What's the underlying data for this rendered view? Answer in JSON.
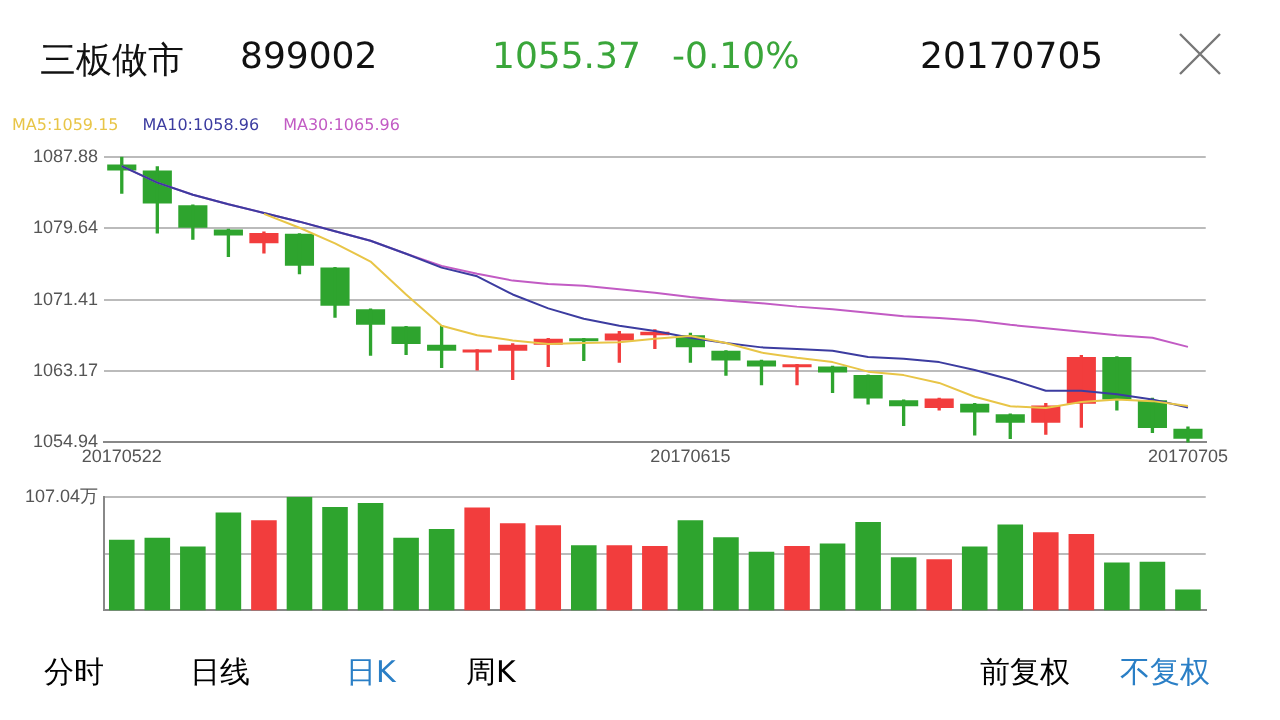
{
  "chart_data": [
    {
      "type": "candlestick",
      "title": "三板做市",
      "annotations": [
        "899002",
        "1055.37",
        "-0.10%",
        "20170705"
      ],
      "categories": [
        "20170522",
        null,
        null,
        null,
        null,
        null,
        null,
        null,
        null,
        null,
        null,
        null,
        null,
        null,
        null,
        null,
        "20170615",
        null,
        null,
        null,
        null,
        null,
        null,
        null,
        null,
        null,
        null,
        null,
        null,
        null,
        "20170705"
      ],
      "ohlc": [
        [
          1087.0,
          1087.88,
          1083.7,
          1086.3
        ],
        [
          1086.3,
          1086.7,
          1079.1,
          1082.5
        ],
        [
          1082.3,
          1082.3,
          1078.4,
          1079.7
        ],
        [
          1079.5,
          1079.5,
          1076.4,
          1078.8
        ],
        [
          1077.9,
          1079.2,
          1076.8,
          1079.1
        ],
        [
          1079.0,
          1079.0,
          1074.4,
          1075.3
        ],
        [
          1075.1,
          1075.1,
          1069.4,
          1070.7
        ],
        [
          1070.3,
          1070.3,
          1065.0,
          1068.5
        ],
        [
          1068.3,
          1068.3,
          1065.1,
          1066.3
        ],
        [
          1066.2,
          1068.4,
          1063.6,
          1065.5
        ],
        [
          1065.3,
          1065.6,
          1063.3,
          1065.5
        ],
        [
          1065.5,
          1066.3,
          1062.2,
          1066.2
        ],
        [
          1066.2,
          1066.9,
          1063.7,
          1066.9
        ],
        [
          1066.8,
          1066.9,
          1064.4,
          1066.6
        ],
        [
          1066.7,
          1067.7,
          1064.2,
          1067.5
        ],
        [
          1067.3,
          1067.9,
          1065.8,
          1067.7
        ],
        [
          1067.3,
          1067.5,
          1064.2,
          1065.9
        ],
        [
          1065.5,
          1065.5,
          1062.7,
          1064.4
        ],
        [
          1064.4,
          1064.4,
          1061.6,
          1063.7
        ],
        [
          1063.6,
          1063.9,
          1061.6,
          1063.9
        ],
        [
          1063.7,
          1063.7,
          1060.7,
          1063.0
        ],
        [
          1062.7,
          1062.7,
          1059.4,
          1060.0
        ],
        [
          1059.8,
          1059.8,
          1056.9,
          1059.1
        ],
        [
          1058.9,
          1060.0,
          1058.7,
          1060.0
        ],
        [
          1059.4,
          1059.4,
          1055.8,
          1058.4
        ],
        [
          1058.2,
          1058.2,
          1055.4,
          1057.2
        ],
        [
          1057.2,
          1059.4,
          1055.9,
          1059.2
        ],
        [
          1059.4,
          1064.95,
          1056.7,
          1064.8
        ],
        [
          1064.8,
          1064.8,
          1058.7,
          1059.9
        ],
        [
          1059.8,
          1060.0,
          1056.1,
          1056.6
        ],
        [
          1056.5,
          1056.7,
          1054.94,
          1055.37
        ]
      ],
      "colors": [
        "#2ea42e",
        "#2ea42e",
        "#2ea42e",
        "#2ea42e",
        "#f23d3d",
        "#2ea42e",
        "#2ea42e",
        "#2ea42e",
        "#2ea42e",
        "#2ea42e",
        "#f23d3d",
        "#f23d3d",
        "#f23d3d",
        "#2ea42e",
        "#f23d3d",
        "#f23d3d",
        "#2ea42e",
        "#2ea42e",
        "#2ea42e",
        "#f23d3d",
        "#2ea42e",
        "#2ea42e",
        "#2ea42e",
        "#f23d3d",
        "#2ea42e",
        "#2ea42e",
        "#f23d3d",
        "#f23d3d",
        "#2ea42e",
        "#2ea42e",
        "#2ea42e"
      ],
      "series": [
        {
          "type": "line",
          "name": "MA5:1059.15",
          "color": "#e8c547",
          "values": [
            null,
            null,
            null,
            null,
            1081.3,
            1079.7,
            1077.9,
            1075.8,
            1072.0,
            1068.4,
            1067.3,
            1066.7,
            1066.3,
            1066.4,
            1066.5,
            1066.9,
            1067.2,
            1066.4,
            1065.3,
            1064.7,
            1064.2,
            1063.1,
            1062.7,
            1061.8,
            1060.2,
            1059.1,
            1058.9,
            1059.6,
            1059.9,
            1059.7,
            1059.15
          ]
        },
        {
          "type": "line",
          "name": "MA10:1058.96",
          "color": "#3c3ca0",
          "values": [
            1086.8,
            1084.9,
            1083.5,
            1082.4,
            1081.4,
            1080.4,
            1079.3,
            1078.2,
            1076.7,
            1075.1,
            1074.1,
            1072.0,
            1070.4,
            1069.2,
            1068.4,
            1067.8,
            1067.0,
            1066.4,
            1065.9,
            1065.7,
            1065.5,
            1064.8,
            1064.6,
            1064.2,
            1063.3,
            1062.2,
            1060.9,
            1060.9,
            1060.5,
            1059.9,
            1058.96
          ]
        },
        {
          "type": "line",
          "name": "MA30:1065.96",
          "color": "#c25bc4",
          "values": [
            1086.8,
            1084.9,
            1083.5,
            1082.4,
            1081.4,
            1080.4,
            1079.3,
            1078.2,
            1076.7,
            1075.3,
            1074.4,
            1073.6,
            1073.2,
            1073.0,
            1072.6,
            1072.2,
            1071.7,
            1071.3,
            1071.0,
            1070.6,
            1070.3,
            1069.9,
            1069.5,
            1069.3,
            1069.0,
            1068.5,
            1068.1,
            1067.7,
            1067.3,
            1067.0,
            1065.96
          ]
        }
      ],
      "ylim": [
        1054.94,
        1087.88
      ],
      "yticks": [
        1054.94,
        1063.17,
        1071.41,
        1079.64,
        1087.88
      ],
      "grid": "y",
      "legend": "top left"
    },
    {
      "type": "bar",
      "annotations": [
        "分时",
        "日线",
        "日K",
        "周K",
        "前复权",
        "不复权"
      ],
      "categories": [
        null,
        null,
        null,
        null,
        null,
        null,
        null,
        null,
        null,
        null,
        null,
        null,
        null,
        null,
        null,
        null,
        null,
        null,
        null,
        null,
        null,
        null,
        null,
        null,
        null,
        null,
        null,
        null,
        null,
        null,
        null
      ],
      "values": [
        66.6,
        68.4,
        60.1,
        92.2,
        85.0,
        107.04,
        97.5,
        101.1,
        68.4,
        76.7,
        96.9,
        82.1,
        80.3,
        61.3,
        61.3,
        60.7,
        85.0,
        69.0,
        55.3,
        60.7,
        63.0,
        83.3,
        50.0,
        48.2,
        60.1,
        80.9,
        73.7,
        72.0,
        45.2,
        45.8,
        19.6
      ],
      "colors": [
        "#2ea42e",
        "#2ea42e",
        "#2ea42e",
        "#2ea42e",
        "#f23d3d",
        "#2ea42e",
        "#2ea42e",
        "#2ea42e",
        "#2ea42e",
        "#2ea42e",
        "#f23d3d",
        "#f23d3d",
        "#f23d3d",
        "#2ea42e",
        "#f23d3d",
        "#f23d3d",
        "#2ea42e",
        "#2ea42e",
        "#2ea42e",
        "#f23d3d",
        "#2ea42e",
        "#2ea42e",
        "#2ea42e",
        "#f23d3d",
        "#2ea42e",
        "#2ea42e",
        "#f23d3d",
        "#f23d3d",
        "#2ea42e",
        "#2ea42e",
        "#2ea42e"
      ],
      "ylim": [
        0,
        107.04
      ],
      "yticks": [
        {
          "value": 107.04,
          "label": "107.04万"
        },
        {
          "value": 53.52,
          "label": null
        }
      ],
      "grid": "y"
    }
  ]
}
